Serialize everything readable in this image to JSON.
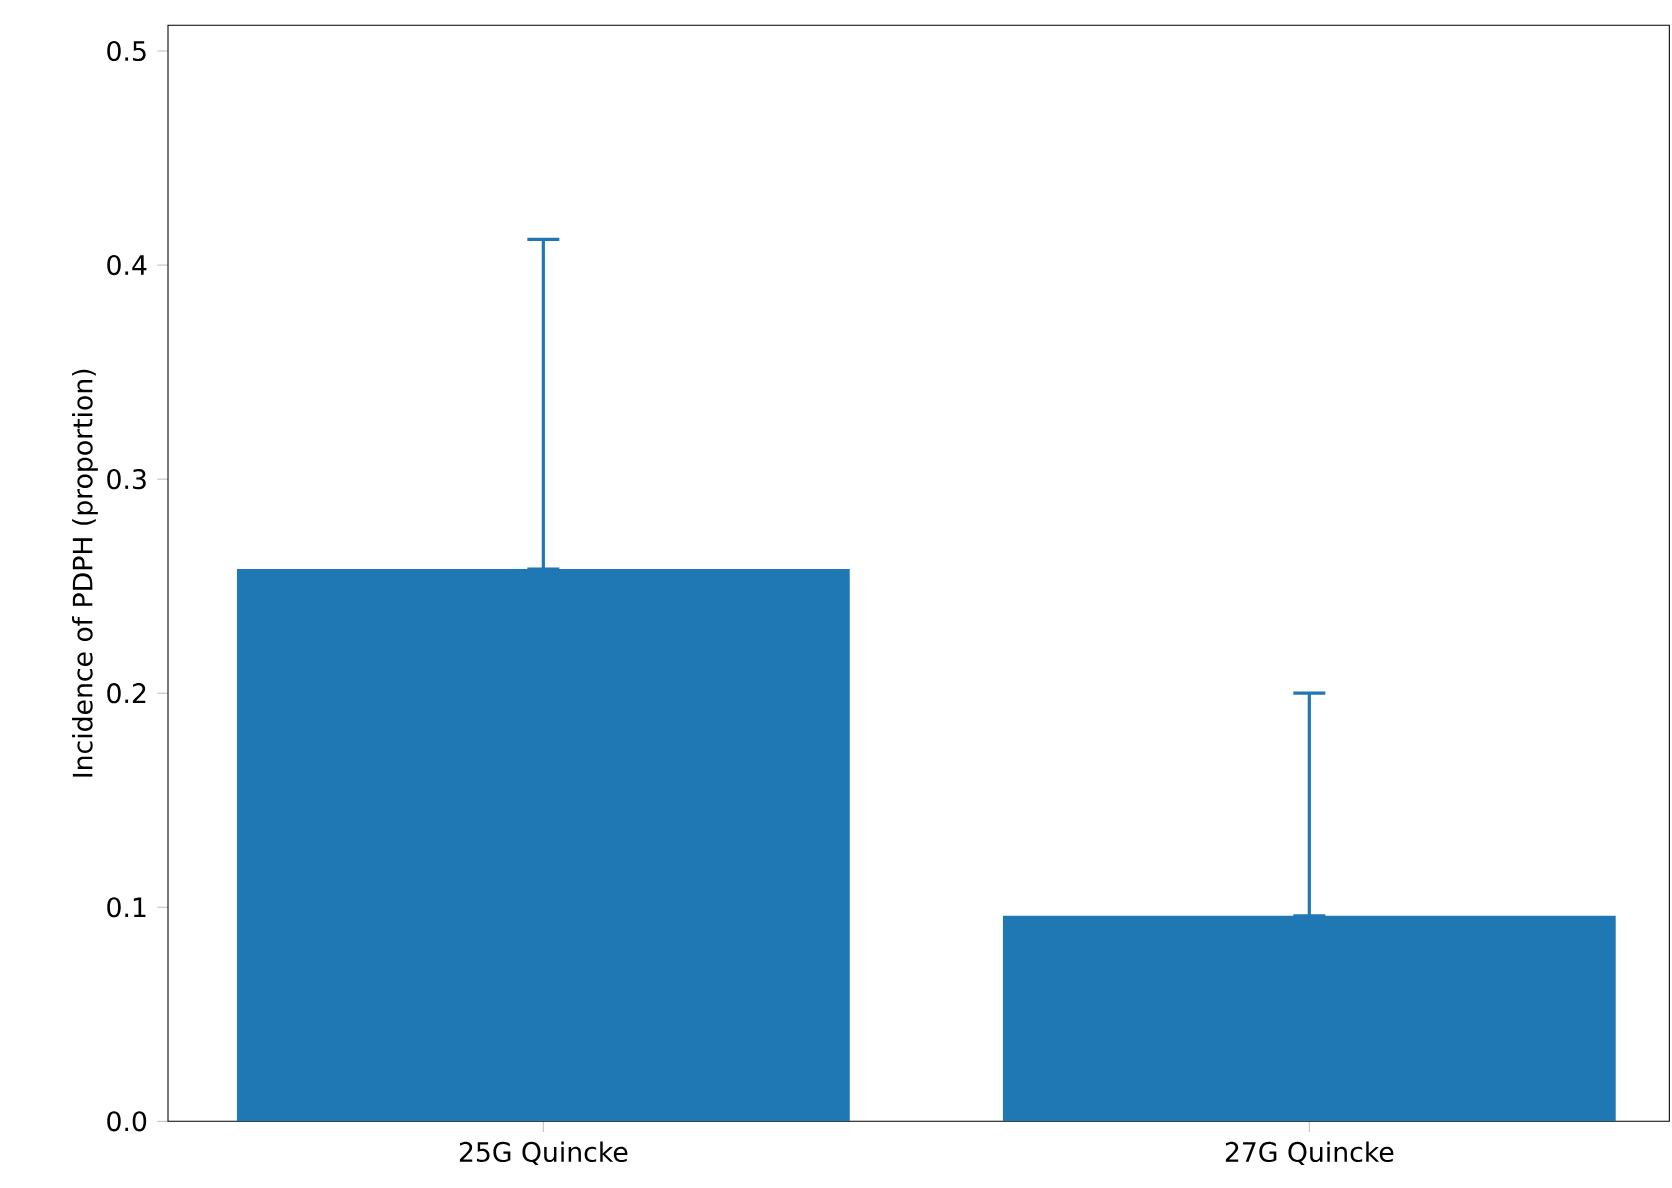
{
  "chart_data": {
    "type": "bar",
    "ylabel": "Incidence of PDPH (proportion)",
    "categories": [
      "25G Quincke",
      "27G Quincke"
    ],
    "values": [
      0.258,
      0.096
    ],
    "errors": [
      [
        0.258,
        0.412
      ],
      [
        0.096,
        0.2
      ]
    ],
    "color": "#1f77b4",
    "ylim": [
      0,
      0.512
    ],
    "yticks": [
      {
        "value": 0,
        "label": "0.0"
      },
      0.1,
      0.2,
      0.3,
      0.4,
      0.5
    ]
  }
}
